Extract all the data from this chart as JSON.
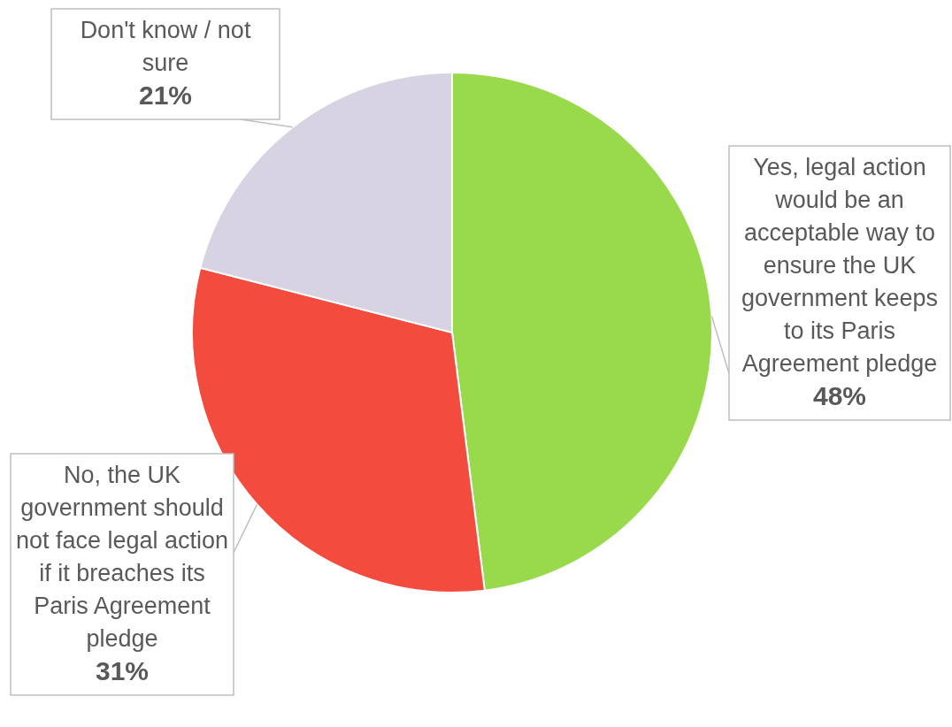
{
  "chart_data": {
    "type": "pie",
    "categories": [
      "Yes, legal action would be an acceptable way to ensure the UK government keeps to its Paris Agreement pledge",
      "No, the UK government should not face legal action if it breaches its Paris Agreement pledge",
      "Don't know / not sure"
    ],
    "values": [
      48,
      31,
      21
    ],
    "value_labels": [
      "48%",
      "31%",
      "21%"
    ],
    "colors": [
      "#99d94c",
      "#f44b3f",
      "#d8d3e3"
    ],
    "legend": false
  }
}
